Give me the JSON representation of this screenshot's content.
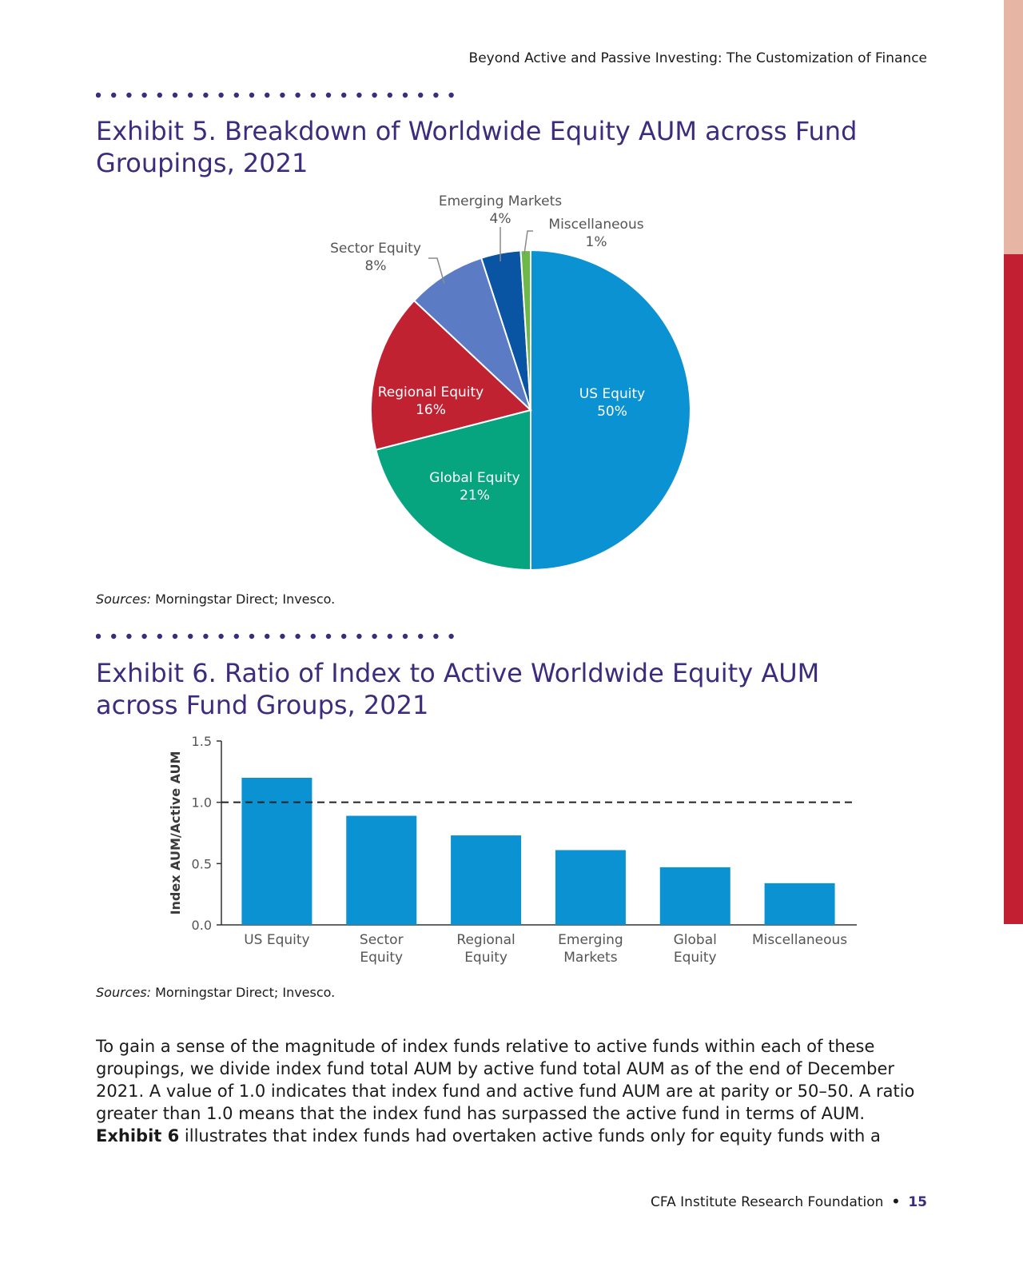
{
  "header": {
    "running_title": "Beyond Active and Passive Investing: The Customization of Finance"
  },
  "exhibit5": {
    "title": "Exhibit 5. Breakdown of Worldwide Equity AUM across Fund Groupings, 2021",
    "sources_label": "Sources:",
    "sources_text": " Morningstar Direct; Invesco."
  },
  "exhibit6": {
    "title": "Exhibit 6. Ratio of Index to Active Worldwide Equity AUM across Fund Groups, 2021",
    "sources_label": "Sources:",
    "sources_text": " Morningstar Direct; Invesco."
  },
  "chart_data": [
    {
      "type": "pie",
      "categories": [
        "US Equity",
        "Global Equity",
        "Regional Equity",
        "Sector Equity",
        "Emerging Markets",
        "Miscellaneous"
      ],
      "values": [
        50,
        21,
        16,
        8,
        4,
        1
      ],
      "labels": [
        "50%",
        "21%",
        "16%",
        "8%",
        "4%",
        "1%"
      ],
      "colors": [
        "#0b92d3",
        "#06a57f",
        "#c02232",
        "#5b7cc4",
        "#0a55a3",
        "#6cb94a"
      ],
      "title": ""
    },
    {
      "type": "bar",
      "categories": [
        "US Equity",
        "Sector Equity",
        "Regional Equity",
        "Emerging Markets",
        "Global Equity",
        "Miscellaneous"
      ],
      "category_lines": [
        [
          "US Equity"
        ],
        [
          "Sector",
          "Equity"
        ],
        [
          "Regional",
          "Equity"
        ],
        [
          "Emerging",
          "Markets"
        ],
        [
          "Global",
          "Equity"
        ],
        [
          "Miscellaneous"
        ]
      ],
      "values": [
        1.2,
        0.89,
        0.73,
        0.61,
        0.47,
        0.34
      ],
      "ylabel": "Index AUM/Active AUM",
      "ylim": [
        0,
        1.5
      ],
      "yticks": [
        "0.0",
        "0.5",
        "1.0",
        "1.5"
      ],
      "reference_line": 1.0,
      "bar_color": "#0b92d3",
      "title": ""
    }
  ],
  "body": {
    "paragraph_plain": "To gain a sense of the magnitude of index funds relative to active funds within each of these groupings, we divide index fund total AUM by active fund total AUM as of the end of December 2021. A value of 1.0 indicates that index fund and active fund AUM are at parity or 50–50. A ratio greater than 1.0 means that the index fund has surpassed the active fund in terms of AUM. ",
    "paragraph_bold": "Exhibit 6",
    "paragraph_tail": " illustrates that index funds had overtaken active funds only for equity funds with a"
  },
  "footer": {
    "org": "CFA Institute Research Foundation",
    "page": "15"
  }
}
